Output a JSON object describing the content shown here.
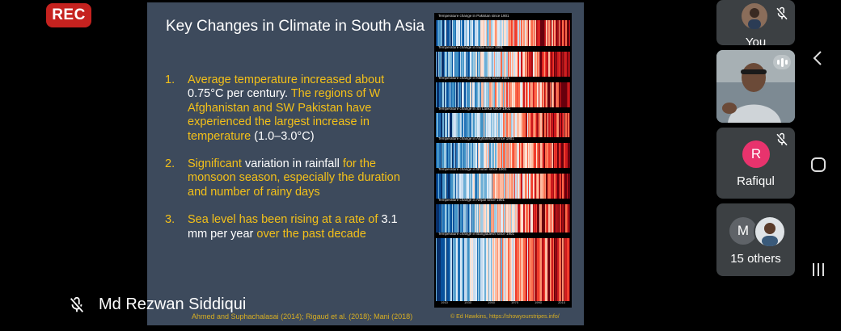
{
  "recording_badge": "REC",
  "slide": {
    "title": "Key Changes in Climate in South Asia",
    "points": [
      {
        "num": "1.",
        "segments": [
          {
            "text": "Average temperature increased about ",
            "white": false
          },
          {
            "text": "0.75°C per century. ",
            "white": true
          },
          {
            "text": "The regions of W Afghanistan and SW Pakistan have experienced the largest increase in temperature ",
            "white": false
          },
          {
            "text": "(1.0–3.0°C)",
            "white": true
          }
        ]
      },
      {
        "num": "2.",
        "segments": [
          {
            "text": "Significant ",
            "white": false
          },
          {
            "text": "variation in rainfall ",
            "white": true
          },
          {
            "text": "for the monsoon season, especially the duration and number of rainy days",
            "white": false
          }
        ]
      },
      {
        "num": "3.",
        "segments": [
          {
            "text": "Sea level has been rising at a rate of ",
            "white": false
          },
          {
            "text": "3.1 mm per year ",
            "white": true
          },
          {
            "text": "over the past decade",
            "white": false
          }
        ]
      }
    ],
    "citation": "Ahmed and Suphachalasai (2014); Rigaud et al. (2018); Mani (2018)",
    "credit": "© Ed Hawkins, https://showyourstripes.info/",
    "stripe_panels": [
      "Temperature change in Pakistan since 1901",
      "Temperature change in India since 1901",
      "Temperature change in Maldives since 1901",
      "Temperature change in Sri Lanka since 1901",
      "Temperature change in Afghanistan since 1901",
      "Temperature change in Bhutan since 1901",
      "Temperature change in Nepal since 1901",
      "Temperature change in Bangladesh since 1901"
    ],
    "stripe_axis_ticks": [
      "1910",
      "1930",
      "1950",
      "1970",
      "1990",
      "2010"
    ]
  },
  "active_speaker": {
    "name": "Md Rezwan Siddiqui",
    "muted": true
  },
  "participants": [
    {
      "name": "You",
      "muted": true
    },
    {
      "name": "",
      "video": true,
      "speaking": true
    },
    {
      "initial": "R",
      "name": "Rafiqul",
      "muted": true,
      "color": "#e8336d"
    },
    {
      "initial": "M",
      "name": "15 others",
      "color": "#5f6368"
    }
  ],
  "colors": {
    "accent_yellow": "#f3c019",
    "slide_bg": "#3d4a5c",
    "rec_red": "#c5221f",
    "tile_bg": "#3c4043"
  }
}
